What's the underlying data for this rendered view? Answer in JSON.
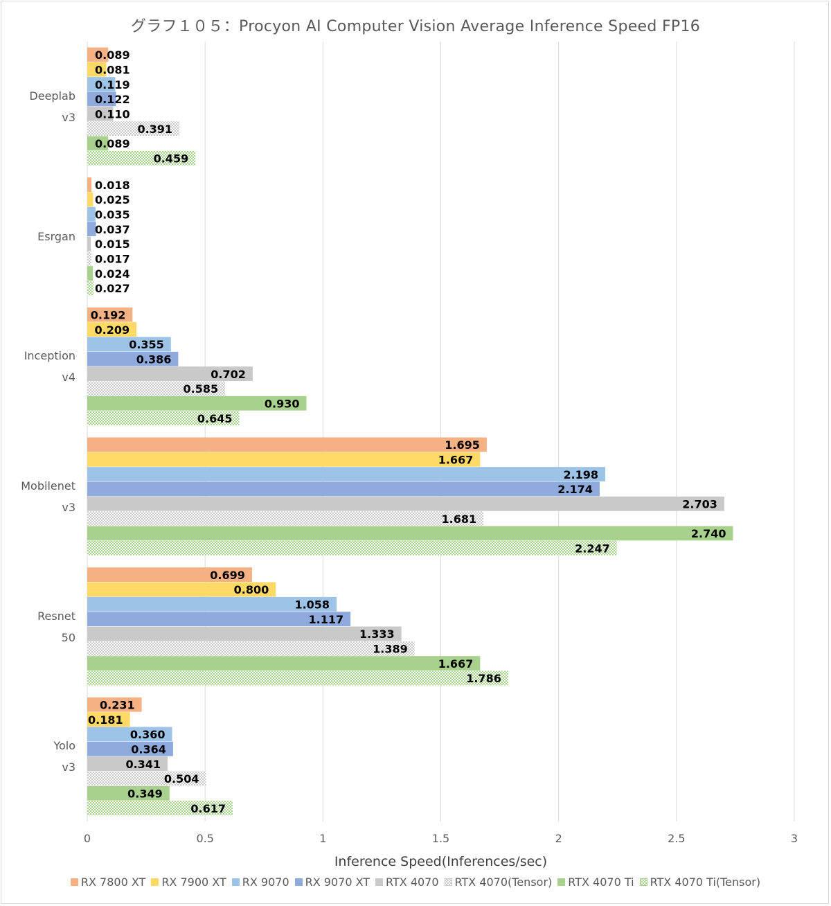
{
  "chart_data": {
    "type": "bar",
    "orientation": "horizontal",
    "title": "グラフ１０５：Procyon AI Computer Vision Average Inference Speed FP16",
    "xlabel": "Inference Speed(Inferences/sec)",
    "ylabel": "",
    "xlim": [
      0,
      3
    ],
    "xticks": [
      "0",
      "0.5",
      "1",
      "1.5",
      "2",
      "2.5",
      "3"
    ],
    "grid": "vertical",
    "legend_position": "bottom",
    "categories": [
      {
        "line1": "Deeplab",
        "line2": "v3"
      },
      {
        "line1": "Esrgan",
        "line2": ""
      },
      {
        "line1": "Inception",
        "line2": "v4"
      },
      {
        "line1": "Mobilenet",
        "line2": "v3"
      },
      {
        "line1": "Resnet",
        "line2": "50"
      },
      {
        "line1": "Yolo",
        "line2": "v3"
      }
    ],
    "series": [
      {
        "name": "RX 7800 XT",
        "color": "#f4b183",
        "pattern": "solid",
        "values": [
          0.089,
          0.018,
          0.192,
          1.695,
          0.699,
          0.231
        ]
      },
      {
        "name": "RX 7900 XT",
        "color": "#ffd966",
        "pattern": "solid",
        "values": [
          0.081,
          0.025,
          0.209,
          1.667,
          0.8,
          0.181
        ]
      },
      {
        "name": "RX 9070",
        "color": "#9dc3e6",
        "pattern": "solid",
        "values": [
          0.119,
          0.035,
          0.355,
          2.198,
          1.058,
          0.36
        ]
      },
      {
        "name": "RX 9070 XT",
        "color": "#8faadc",
        "pattern": "solid",
        "values": [
          0.122,
          0.037,
          0.386,
          2.174,
          1.117,
          0.364
        ]
      },
      {
        "name": "RTX 4070",
        "color": "#c9c9c9",
        "pattern": "solid",
        "values": [
          0.11,
          0.015,
          0.702,
          2.703,
          1.333,
          0.341
        ]
      },
      {
        "name": "RTX 4070(Tensor)",
        "color": "#c9c9c9",
        "pattern": "checker",
        "values": [
          0.391,
          0.017,
          0.585,
          1.681,
          1.389,
          0.504
        ]
      },
      {
        "name": "RTX 4070 Ti",
        "color": "#a9d18e",
        "pattern": "solid",
        "values": [
          0.089,
          0.024,
          0.93,
          2.74,
          1.667,
          0.349
        ]
      },
      {
        "name": "RTX 4070 Ti(Tensor)",
        "color": "#a9d18e",
        "pattern": "checker",
        "values": [
          0.459,
          0.027,
          0.645,
          2.247,
          1.786,
          0.617
        ]
      }
    ]
  }
}
